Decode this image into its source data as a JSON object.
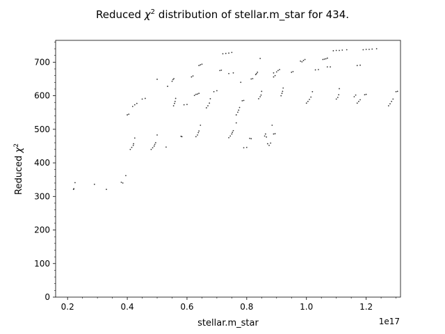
{
  "chart_data": {
    "type": "scatter",
    "title_prefix": "Reduced ",
    "title_symbol": "χ",
    "title_exponent": "2",
    "title_suffix": " distribution of stellar.m_star for 434.",
    "xlabel": "stellar.m_star",
    "ylabel_prefix": "Reduced ",
    "ylabel_symbol": "χ",
    "ylabel_exponent": "2",
    "x_offset_text": "1e17",
    "x_scale": 1e+17,
    "xlim": [
      0.16,
      1.315
    ],
    "ylim": [
      0,
      765
    ],
    "x_ticks": [
      {
        "value": 0.2,
        "label": "0.2"
      },
      {
        "value": 0.4,
        "label": "0.4"
      },
      {
        "value": 0.6,
        "label": "0.6"
      },
      {
        "value": 0.8,
        "label": "0.8"
      },
      {
        "value": 1.0,
        "label": "1.0"
      },
      {
        "value": 1.2,
        "label": "1.2"
      }
    ],
    "y_ticks": [
      {
        "value": 0,
        "label": "0"
      },
      {
        "value": 100,
        "label": "100"
      },
      {
        "value": 200,
        "label": "200"
      },
      {
        "value": 300,
        "label": "300"
      },
      {
        "value": 400,
        "label": "400"
      },
      {
        "value": 500,
        "label": "500"
      },
      {
        "value": 600,
        "label": "600"
      },
      {
        "value": 700,
        "label": "700"
      }
    ],
    "marker_color": "#333333",
    "grid": false,
    "legend": "none",
    "points": [
      [
        0.22,
        321
      ],
      [
        0.221,
        323
      ],
      [
        0.225,
        341
      ],
      [
        0.29,
        336
      ],
      [
        0.33,
        321
      ],
      [
        0.38,
        342
      ],
      [
        0.385,
        340
      ],
      [
        0.395,
        362
      ],
      [
        0.41,
        440
      ],
      [
        0.415,
        446
      ],
      [
        0.42,
        452
      ],
      [
        0.421,
        457
      ],
      [
        0.425,
        474
      ],
      [
        0.48,
        440
      ],
      [
        0.485,
        445
      ],
      [
        0.49,
        450
      ],
      [
        0.492,
        455
      ],
      [
        0.495,
        460
      ],
      [
        0.5,
        483
      ],
      [
        0.53,
        447
      ],
      [
        0.58,
        479
      ],
      [
        0.583,
        478
      ],
      [
        0.63,
        478
      ],
      [
        0.635,
        483
      ],
      [
        0.638,
        490
      ],
      [
        0.64,
        495
      ],
      [
        0.645,
        512
      ],
      [
        0.74,
        475
      ],
      [
        0.745,
        480
      ],
      [
        0.75,
        486
      ],
      [
        0.752,
        491
      ],
      [
        0.755,
        496
      ],
      [
        0.765,
        519
      ],
      [
        0.79,
        445
      ],
      [
        0.8,
        446
      ],
      [
        0.81,
        473
      ],
      [
        0.815,
        472
      ],
      [
        0.86,
        480
      ],
      [
        0.863,
        486
      ],
      [
        0.866,
        477
      ],
      [
        0.87,
        457
      ],
      [
        0.875,
        452
      ],
      [
        0.88,
        459
      ],
      [
        0.885,
        512
      ],
      [
        0.89,
        486
      ],
      [
        0.895,
        487
      ],
      [
        0.4,
        543
      ],
      [
        0.405,
        545
      ],
      [
        0.418,
        568
      ],
      [
        0.425,
        573
      ],
      [
        0.432,
        577
      ],
      [
        0.45,
        590
      ],
      [
        0.46,
        592
      ],
      [
        0.5,
        649
      ],
      [
        0.535,
        628
      ],
      [
        0.55,
        643
      ],
      [
        0.553,
        648
      ],
      [
        0.556,
        651
      ],
      [
        0.555,
        570
      ],
      [
        0.558,
        577
      ],
      [
        0.56,
        583
      ],
      [
        0.562,
        592
      ],
      [
        0.59,
        573
      ],
      [
        0.6,
        574
      ],
      [
        0.625,
        601
      ],
      [
        0.63,
        604
      ],
      [
        0.635,
        605
      ],
      [
        0.64,
        607
      ],
      [
        0.665,
        564
      ],
      [
        0.67,
        570
      ],
      [
        0.675,
        578
      ],
      [
        0.678,
        591
      ],
      [
        0.69,
        612
      ],
      [
        0.7,
        615
      ],
      [
        0.615,
        656
      ],
      [
        0.62,
        659
      ],
      [
        0.64,
        690
      ],
      [
        0.645,
        692
      ],
      [
        0.65,
        694
      ],
      [
        0.71,
        675
      ],
      [
        0.715,
        676
      ],
      [
        0.72,
        725
      ],
      [
        0.73,
        726
      ],
      [
        0.74,
        727
      ],
      [
        0.75,
        729
      ],
      [
        0.74,
        666
      ],
      [
        0.755,
        668
      ],
      [
        0.765,
        543
      ],
      [
        0.77,
        551
      ],
      [
        0.773,
        557
      ],
      [
        0.776,
        565
      ],
      [
        0.785,
        585
      ],
      [
        0.79,
        586
      ],
      [
        0.78,
        640
      ],
      [
        0.815,
        650
      ],
      [
        0.82,
        651
      ],
      [
        0.83,
        663
      ],
      [
        0.833,
        666
      ],
      [
        0.836,
        670
      ],
      [
        0.845,
        711
      ],
      [
        0.84,
        591
      ],
      [
        0.845,
        597
      ],
      [
        0.848,
        602
      ],
      [
        0.85,
        613
      ],
      [
        0.89,
        656
      ],
      [
        0.895,
        660
      ],
      [
        0.9,
        671
      ],
      [
        0.905,
        675
      ],
      [
        0.91,
        678
      ],
      [
        0.89,
        668
      ],
      [
        0.915,
        600
      ],
      [
        0.918,
        607
      ],
      [
        0.92,
        613
      ],
      [
        0.922,
        623
      ],
      [
        0.95,
        670
      ],
      [
        0.955,
        672
      ],
      [
        0.98,
        703
      ],
      [
        0.985,
        701
      ],
      [
        0.99,
        705
      ],
      [
        0.995,
        708
      ],
      [
        1.0,
        578
      ],
      [
        1.005,
        583
      ],
      [
        1.01,
        589
      ],
      [
        1.015,
        596
      ],
      [
        1.02,
        612
      ],
      [
        1.03,
        677
      ],
      [
        1.04,
        678
      ],
      [
        1.055,
        708
      ],
      [
        1.06,
        709
      ],
      [
        1.065,
        710
      ],
      [
        1.07,
        712
      ],
      [
        1.07,
        686
      ],
      [
        1.08,
        686
      ],
      [
        1.1,
        590
      ],
      [
        1.105,
        595
      ],
      [
        1.108,
        603
      ],
      [
        1.11,
        621
      ],
      [
        1.09,
        734
      ],
      [
        1.1,
        735
      ],
      [
        1.11,
        735
      ],
      [
        1.12,
        736
      ],
      [
        1.135,
        737
      ],
      [
        1.16,
        597
      ],
      [
        1.165,
        602
      ],
      [
        1.17,
        578
      ],
      [
        1.175,
        583
      ],
      [
        1.18,
        588
      ],
      [
        1.195,
        603
      ],
      [
        1.2,
        604
      ],
      [
        1.17,
        690
      ],
      [
        1.18,
        691
      ],
      [
        1.19,
        737
      ],
      [
        1.2,
        738
      ],
      [
        1.21,
        738
      ],
      [
        1.22,
        739
      ],
      [
        1.235,
        740
      ],
      [
        1.275,
        570
      ],
      [
        1.28,
        576
      ],
      [
        1.285,
        583
      ],
      [
        1.29,
        590
      ],
      [
        1.3,
        612
      ],
      [
        1.305,
        613
      ]
    ]
  }
}
